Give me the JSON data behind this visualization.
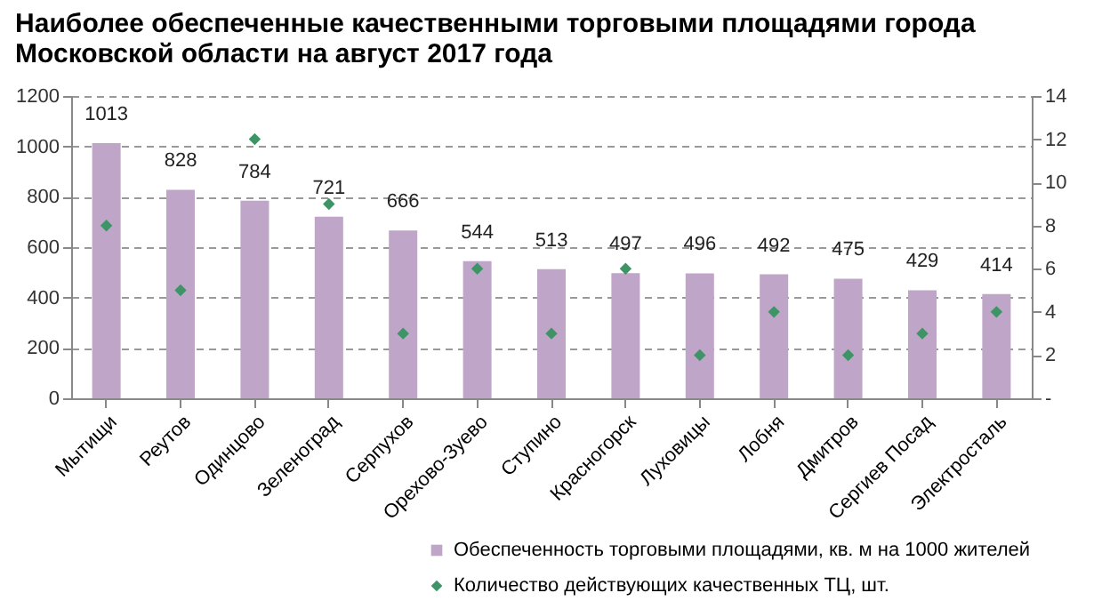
{
  "chart_data": {
    "type": "bar",
    "title": [
      "Наиболее обеспеченные качественными торговыми площадями города",
      "Московской области на август 2017 года"
    ],
    "categories": [
      "Мытищи",
      "Реутов",
      "Одинцово",
      "Зеленоград",
      "Серпухов",
      "Орехово-Зуево",
      "Ступино",
      "Красногорск",
      "Луховицы",
      "Лобня",
      "Дмитров",
      "Сергиев Посад",
      "Электросталь"
    ],
    "series": [
      {
        "name": "Обеспеченность торговыми площадями, кв. м на 1000 жителей",
        "color": "#bfa5c8",
        "values": [
          1013,
          828,
          784,
          721,
          666,
          544,
          513,
          497,
          496,
          492,
          475,
          429,
          414
        ],
        "value_labels": [
          "1013",
          "828",
          "784",
          "721",
          "666",
          "544",
          "513",
          "497",
          "496",
          "492",
          "475",
          "429",
          "414"
        ]
      },
      {
        "name": "Количество действующих качественных ТЦ, шт.",
        "type": "scatter",
        "axis": "y2",
        "marker": "diamond",
        "color": "#3f9467",
        "values": [
          8,
          5,
          12,
          9,
          3,
          6,
          3,
          6,
          2,
          4,
          2,
          3,
          4
        ]
      }
    ],
    "ylim": [
      0,
      1200
    ],
    "yticks": [
      0,
      200,
      400,
      600,
      800,
      1000,
      1200
    ],
    "y2lim": [
      0,
      14
    ],
    "y2ticks": [
      {
        "value": 0,
        "label": "-"
      },
      2,
      4,
      6,
      8,
      10,
      12,
      14
    ],
    "grid": "y",
    "legend": "bottom"
  }
}
